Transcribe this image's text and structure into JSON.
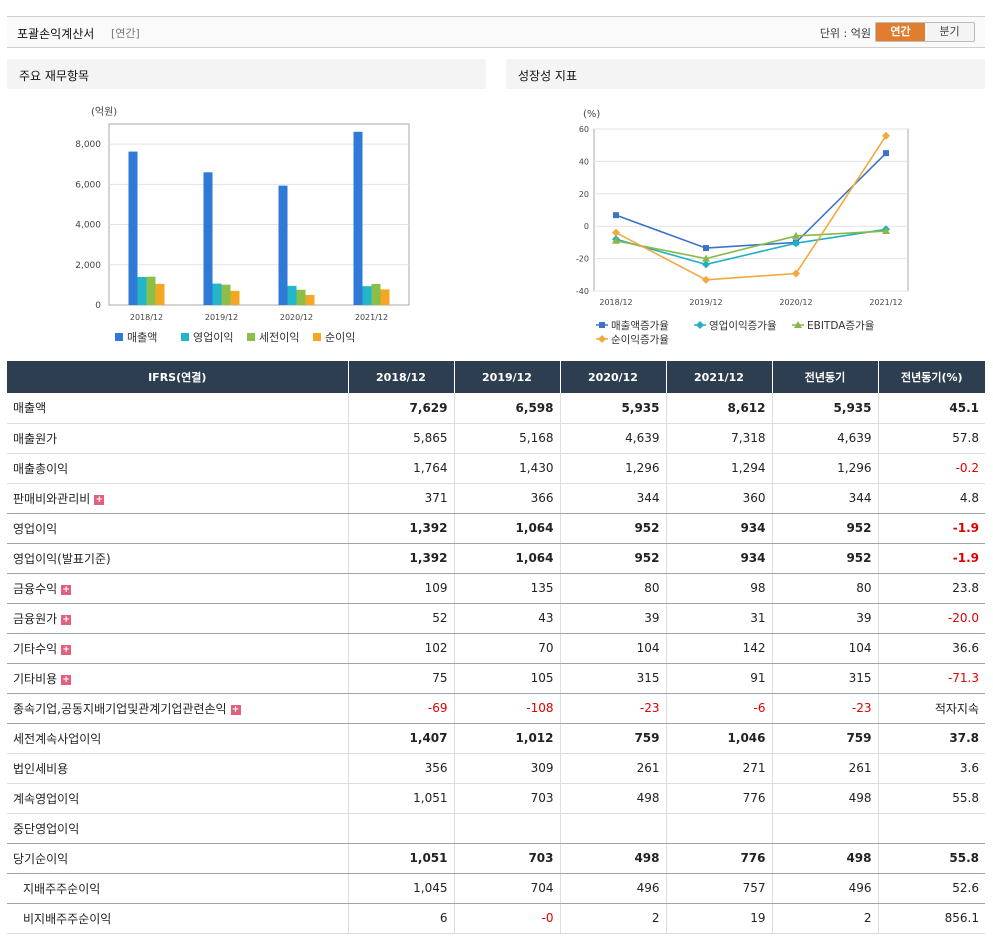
{
  "header": {
    "title": "포괄손익계산서",
    "period_tag": "[연간]",
    "unit_label": "단위 : 억원",
    "toggle_annual": "연간",
    "toggle_quarter": "분기"
  },
  "left_panel_title": "주요 재무항목",
  "right_panel_title": "성장성 지표",
  "colors": {
    "sales": "#2f7ad7",
    "op": "#21b6c9",
    "pretax": "#8bbf4a",
    "net": "#f5a623",
    "growth_sales": "#3d72c9",
    "growth_op": "#22b0c4",
    "growth_ebitda": "#86b94a",
    "growth_net": "#f2a93b"
  },
  "chart_data": [
    {
      "type": "bar",
      "unit_label": "(억원)",
      "categories": [
        "2018/12",
        "2019/12",
        "2020/12",
        "2021/12"
      ],
      "ylim": [
        0,
        9000
      ],
      "yticks": [
        0,
        2000,
        4000,
        6000,
        8000
      ],
      "ytick_labels": [
        "0",
        "2,000",
        "4,000",
        "6,000",
        "8,000"
      ],
      "grid": true,
      "legend_position": "bottom",
      "series": [
        {
          "name": "매출액",
          "values": [
            7629,
            6598,
            5935,
            8612
          ]
        },
        {
          "name": "영업이익",
          "values": [
            1392,
            1064,
            952,
            934
          ]
        },
        {
          "name": "세전이익",
          "values": [
            1407,
            1012,
            759,
            1046
          ]
        },
        {
          "name": "순이익",
          "values": [
            1051,
            703,
            498,
            776
          ]
        }
      ]
    },
    {
      "type": "line",
      "unit_label": "(%)",
      "categories": [
        "2018/12",
        "2019/12",
        "2020/12",
        "2021/12"
      ],
      "ylim": [
        -40,
        60
      ],
      "yticks": [
        -40,
        -20,
        0,
        20,
        40,
        60
      ],
      "ytick_labels": [
        "-40",
        "-20",
        "0",
        "20",
        "40",
        "60"
      ],
      "grid": true,
      "legend_position": "bottom",
      "series": [
        {
          "name": "매출액증가율",
          "values": [
            6.8,
            -13.5,
            -10.0,
            45.1
          ]
        },
        {
          "name": "영업이익증가율",
          "values": [
            -8.0,
            -23.6,
            -10.5,
            -1.9
          ]
        },
        {
          "name": "EBITDA증가율",
          "values": [
            -9.0,
            -20.0,
            -6.0,
            -3.0
          ]
        },
        {
          "name": "순이익증가율",
          "values": [
            -4.0,
            -33.1,
            -29.2,
            55.8
          ]
        }
      ]
    }
  ],
  "table": {
    "headers": [
      "IFRS(연결)",
      "2018/12",
      "2019/12",
      "2020/12",
      "2021/12",
      "전년동기",
      "전년동기(%)"
    ],
    "rows": [
      {
        "label": "매출액",
        "values": [
          "7,629",
          "6,598",
          "5,935",
          "8,612",
          "5,935",
          "45.1"
        ],
        "bold": true,
        "expand": false,
        "indent": false
      },
      {
        "label": "매출원가",
        "values": [
          "5,865",
          "5,168",
          "4,639",
          "7,318",
          "4,639",
          "57.8"
        ],
        "bold": false,
        "expand": false,
        "indent": false
      },
      {
        "label": "매출총이익",
        "values": [
          "1,764",
          "1,430",
          "1,296",
          "1,294",
          "1,296",
          "-0.2"
        ],
        "bold": false,
        "expand": false,
        "indent": false
      },
      {
        "label": "판매비와관리비",
        "values": [
          "371",
          "366",
          "344",
          "360",
          "344",
          "4.8"
        ],
        "bold": false,
        "expand": true,
        "indent": false
      },
      {
        "label": "영업이익",
        "values": [
          "1,392",
          "1,064",
          "952",
          "934",
          "952",
          "-1.9"
        ],
        "bold": true,
        "expand": false,
        "indent": false
      },
      {
        "label": "영업이익(발표기준)",
        "values": [
          "1,392",
          "1,064",
          "952",
          "934",
          "952",
          "-1.9"
        ],
        "bold": true,
        "expand": false,
        "indent": false
      },
      {
        "label": "금융수익",
        "values": [
          "109",
          "135",
          "80",
          "98",
          "80",
          "23.8"
        ],
        "bold": false,
        "expand": true,
        "indent": false
      },
      {
        "label": "금융원가",
        "values": [
          "52",
          "43",
          "39",
          "31",
          "39",
          "-20.0"
        ],
        "bold": false,
        "expand": true,
        "indent": false
      },
      {
        "label": "기타수익",
        "values": [
          "102",
          "70",
          "104",
          "142",
          "104",
          "36.6"
        ],
        "bold": false,
        "expand": true,
        "indent": false
      },
      {
        "label": "기타비용",
        "values": [
          "75",
          "105",
          "315",
          "91",
          "315",
          "-71.3"
        ],
        "bold": false,
        "expand": true,
        "indent": false
      },
      {
        "label": "종속기업,공동지배기업및관계기업관련손익",
        "values": [
          "-69",
          "-108",
          "-23",
          "-6",
          "-23",
          "적자지속"
        ],
        "bold": false,
        "expand": true,
        "indent": false
      },
      {
        "label": "세전계속사업이익",
        "values": [
          "1,407",
          "1,012",
          "759",
          "1,046",
          "759",
          "37.8"
        ],
        "bold": true,
        "expand": false,
        "indent": false
      },
      {
        "label": "법인세비용",
        "values": [
          "356",
          "309",
          "261",
          "271",
          "261",
          "3.6"
        ],
        "bold": false,
        "expand": false,
        "indent": false
      },
      {
        "label": "계속영업이익",
        "values": [
          "1,051",
          "703",
          "498",
          "776",
          "498",
          "55.8"
        ],
        "bold": false,
        "expand": false,
        "indent": false
      },
      {
        "label": "중단영업이익",
        "values": [
          "",
          "",
          "",
          "",
          "",
          ""
        ],
        "bold": false,
        "expand": false,
        "indent": false
      },
      {
        "label": "당기순이익",
        "values": [
          "1,051",
          "703",
          "498",
          "776",
          "498",
          "55.8"
        ],
        "bold": true,
        "expand": false,
        "indent": false
      },
      {
        "label": "지배주주순이익",
        "values": [
          "1,045",
          "704",
          "496",
          "757",
          "496",
          "52.6"
        ],
        "bold": false,
        "expand": false,
        "indent": true
      },
      {
        "label": "비지배주주순이익",
        "values": [
          "6",
          "-0",
          "2",
          "19",
          "2",
          "856.1"
        ],
        "bold": false,
        "expand": false,
        "indent": true
      }
    ]
  }
}
